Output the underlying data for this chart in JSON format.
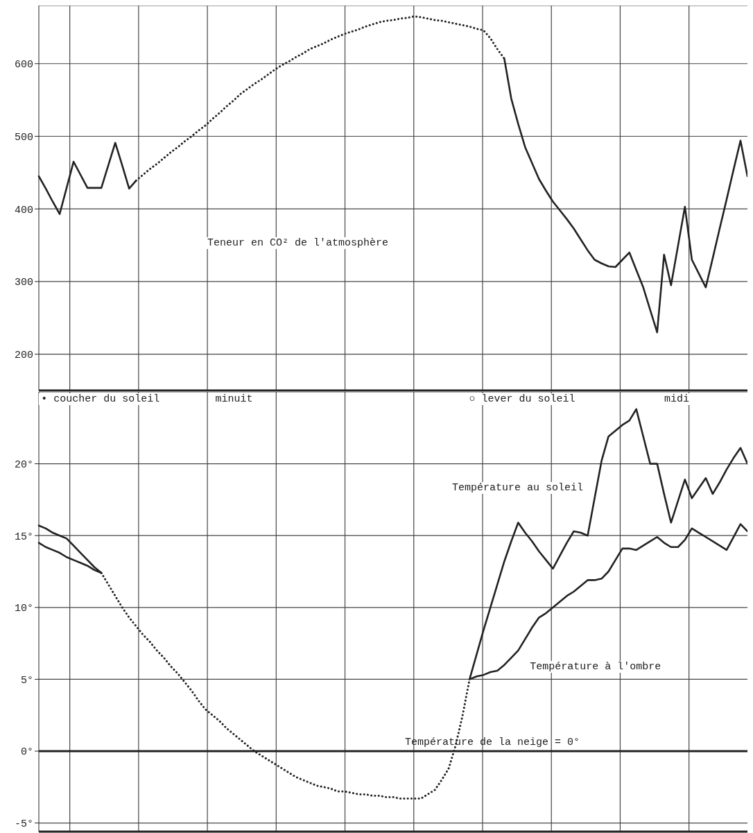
{
  "chart_data": [
    {
      "type": "line",
      "categories": [
        null,
        null,
        null,
        null,
        null,
        null,
        null,
        null,
        null,
        null,
        null,
        null,
        null,
        null,
        null,
        null,
        null,
        null,
        null,
        null,
        null,
        null,
        null,
        null,
        null,
        null,
        null,
        null,
        null,
        null,
        null,
        null,
        null,
        null,
        null,
        null,
        null,
        null,
        null,
        null,
        null,
        null,
        null,
        null,
        null,
        null,
        null,
        null,
        null,
        null,
        null,
        null,
        null,
        null,
        null,
        null,
        null,
        null,
        null,
        null,
        null,
        null,
        null,
        null,
        null,
        null,
        null,
        null,
        null,
        null,
        null,
        null,
        null,
        null,
        null,
        null,
        null,
        null,
        null,
        null,
        null,
        null,
        null,
        null,
        null,
        null,
        null,
        null,
        null,
        null,
        null,
        null,
        null,
        null,
        null,
        null,
        null,
        null,
        null,
        null,
        null,
        null,
        null
      ],
      "ylim": [
        150,
        680
      ],
      "yticks": [
        200,
        300,
        400,
        500,
        600
      ],
      "tick_labels": "y",
      "grid": true,
      "marker": "none",
      "series": [
        {
          "color": "#222222",
          "line_style": "solid",
          "values": [
            445,
            428,
            410,
            393,
            429,
            465,
            447,
            429,
            429,
            429,
            460,
            491,
            460,
            428,
            439,
            null,
            null,
            null,
            null,
            null,
            null,
            null,
            null,
            null,
            null,
            null,
            null,
            null,
            null,
            null,
            null,
            null,
            null,
            null,
            null,
            null,
            null,
            null,
            null,
            null,
            null,
            null,
            null,
            null,
            null,
            null,
            null,
            null,
            null,
            null,
            null,
            null,
            null,
            null,
            null,
            null,
            null,
            null,
            null,
            null,
            null,
            null,
            null,
            null,
            null,
            null,
            null,
            null,
            null,
            null,
            null,
            null,
            null,
            null,
            null,
            null,
            null,
            null,
            null,
            null,
            null,
            null,
            null,
            null,
            null,
            null,
            null,
            null,
            null,
            null,
            null,
            null,
            null,
            null,
            null,
            null,
            null,
            null,
            null,
            null,
            null,
            null,
            null
          ]
        },
        {
          "color": "#222222",
          "line_style": "dotted",
          "values": [
            null,
            null,
            null,
            null,
            null,
            null,
            null,
            null,
            null,
            null,
            null,
            null,
            null,
            null,
            439,
            447,
            455,
            462,
            470,
            478,
            485,
            493,
            500,
            508,
            515,
            524,
            532,
            541,
            549,
            558,
            565,
            572,
            578,
            585,
            592,
            598,
            603,
            609,
            614,
            620,
            624,
            628,
            633,
            637,
            641,
            644,
            647,
            651,
            654,
            657,
            659,
            660,
            662,
            663,
            665,
            664,
            662,
            660,
            659,
            657,
            655,
            653,
            651,
            648,
            646,
            635,
            620,
            607,
            null,
            null,
            null,
            null,
            null,
            null,
            null,
            null,
            null,
            null,
            null,
            null,
            null,
            null,
            null,
            null,
            null,
            null,
            null,
            null,
            null,
            null,
            null,
            null,
            null,
            null,
            null,
            null,
            null,
            null,
            null,
            null,
            null,
            null,
            null
          ]
        },
        {
          "name": "Teneur en CO² de l'atmosphère",
          "color": "#222222",
          "line_style": "solid",
          "values": [
            null,
            null,
            null,
            null,
            null,
            null,
            null,
            null,
            null,
            null,
            null,
            null,
            null,
            null,
            null,
            null,
            null,
            null,
            null,
            null,
            null,
            null,
            null,
            null,
            null,
            null,
            null,
            null,
            null,
            null,
            null,
            null,
            null,
            null,
            null,
            null,
            null,
            null,
            null,
            null,
            null,
            null,
            null,
            null,
            null,
            null,
            null,
            null,
            null,
            null,
            null,
            null,
            null,
            null,
            null,
            null,
            null,
            null,
            null,
            null,
            null,
            null,
            null,
            null,
            null,
            null,
            null,
            607,
            552,
            517,
            485,
            463,
            441,
            425,
            410,
            398,
            386,
            373,
            358,
            343,
            330,
            325,
            321,
            320,
            330,
            340,
            316,
            292,
            261,
            230,
            337,
            295,
            349,
            403,
            330,
            311,
            292,
            332,
            373,
            413,
            454,
            494,
            445
          ]
        }
      ]
    },
    {
      "type": "line",
      "categories": [
        null,
        null,
        null,
        null,
        null,
        null,
        null,
        null,
        null,
        null,
        null,
        null,
        null,
        null,
        null,
        null,
        null,
        null,
        null,
        null,
        null,
        null,
        null,
        null,
        null,
        null,
        null,
        null,
        null,
        null,
        null,
        null,
        null,
        null,
        null,
        null,
        null,
        null,
        null,
        null,
        null,
        null,
        null,
        null,
        null,
        null,
        null,
        null,
        null,
        null,
        null,
        null,
        null,
        null,
        null,
        null,
        null,
        null,
        null,
        null,
        null,
        null,
        null,
        null,
        null,
        null,
        null,
        null,
        null,
        null,
        null,
        null,
        null,
        null,
        null,
        null,
        null,
        null,
        null,
        null,
        null,
        null,
        null,
        null,
        null,
        null,
        null,
        null,
        null,
        null,
        null,
        null,
        null,
        null,
        null,
        null,
        null,
        null,
        null,
        null,
        null,
        null,
        null
      ],
      "ylim": [
        -5.6,
        25
      ],
      "yticks": [
        {
          "value": -5,
          "label": "-5°"
        },
        {
          "value": 0,
          "label": "0°"
        },
        {
          "value": 5,
          "label": "5°"
        },
        {
          "value": 10,
          "label": "10°"
        },
        {
          "value": 15,
          "label": "15°"
        },
        {
          "value": 20,
          "label": "20°"
        }
      ],
      "tick_labels": "y",
      "grid": true,
      "marker": "none",
      "ref_lines": [
        {
          "axis": "y",
          "value": 0,
          "label": "Température de la neige = 0°",
          "color": "#222222"
        }
      ],
      "annotations": [
        "• coucher du soleil",
        "minuit",
        "○ lever du soleil",
        "midi"
      ],
      "series": [
        {
          "color": "#222222",
          "line_style": "solid",
          "values": [
            15.7,
            15.5,
            15.2,
            15.0,
            14.8,
            14.3,
            13.8,
            13.3,
            12.8,
            12.4,
            null,
            null,
            null,
            null,
            null,
            null,
            null,
            null,
            null,
            null,
            null,
            null,
            null,
            null,
            null,
            null,
            null,
            null,
            null,
            null,
            null,
            null,
            null,
            null,
            null,
            null,
            null,
            null,
            null,
            null,
            null,
            null,
            null,
            null,
            null,
            null,
            null,
            null,
            null,
            null,
            null,
            null,
            null,
            null,
            null,
            null,
            null,
            null,
            null,
            null,
            null,
            null,
            null,
            null,
            null,
            null,
            null,
            null,
            null,
            null,
            null,
            null,
            null,
            null,
            null,
            null,
            null,
            null,
            null,
            null,
            null,
            null,
            null,
            null,
            null,
            null,
            null,
            null,
            null,
            null,
            null,
            null,
            null,
            null,
            null,
            null,
            null,
            null,
            null,
            null,
            null,
            null,
            null
          ]
        },
        {
          "color": "#222222",
          "line_style": "solid",
          "values": [
            14.5,
            14.2,
            14.0,
            13.8,
            13.5,
            13.3,
            13.1,
            12.9,
            12.6,
            12.4,
            null,
            null,
            null,
            null,
            null,
            null,
            null,
            null,
            null,
            null,
            null,
            null,
            null,
            null,
            null,
            null,
            null,
            null,
            null,
            null,
            null,
            null,
            null,
            null,
            null,
            null,
            null,
            null,
            null,
            null,
            null,
            null,
            null,
            null,
            null,
            null,
            null,
            null,
            null,
            null,
            null,
            null,
            null,
            null,
            null,
            null,
            null,
            null,
            null,
            null,
            null,
            null,
            null,
            null,
            null,
            null,
            null,
            null,
            null,
            null,
            null,
            null,
            null,
            null,
            null,
            null,
            null,
            null,
            null,
            null,
            null,
            null,
            null,
            null,
            null,
            null,
            null,
            null,
            null,
            null,
            null,
            null,
            null,
            null,
            null,
            null,
            null,
            null,
            null,
            null,
            null,
            null,
            null
          ]
        },
        {
          "color": "#222222",
          "line_style": "dotted",
          "values": [
            null,
            null,
            null,
            null,
            null,
            null,
            null,
            null,
            null,
            12.4,
            11.6,
            10.8,
            10.0,
            9.3,
            8.7,
            8.1,
            7.6,
            7.0,
            6.5,
            5.9,
            5.4,
            4.8,
            4.2,
            3.5,
            2.9,
            2.5,
            2.1,
            1.6,
            1.2,
            0.8,
            0.4,
            0.0,
            -0.3,
            -0.6,
            -0.9,
            -1.2,
            -1.5,
            -1.8,
            -2.0,
            -2.2,
            -2.4,
            -2.5,
            -2.6,
            -2.8,
            -2.8,
            -2.9,
            -3.0,
            -3.0,
            -3.1,
            -3.1,
            -3.2,
            -3.2,
            -3.3,
            -3.3,
            -3.3,
            -3.3,
            -3.0,
            -2.7,
            -2.0,
            -1.2,
            0.4,
            2.5,
            5.0,
            null,
            null,
            null,
            null,
            null,
            null,
            null,
            null,
            null,
            null,
            null,
            null,
            null,
            null,
            null,
            null,
            null,
            null,
            null,
            null,
            null,
            null,
            null,
            null,
            null,
            null,
            null,
            null,
            null,
            null,
            null,
            null,
            null,
            null,
            null,
            null,
            null,
            null,
            null,
            null
          ]
        },
        {
          "name": "Température au soleil",
          "color": "#222222",
          "line_style": "solid",
          "values": [
            null,
            null,
            null,
            null,
            null,
            null,
            null,
            null,
            null,
            null,
            null,
            null,
            null,
            null,
            null,
            null,
            null,
            null,
            null,
            null,
            null,
            null,
            null,
            null,
            null,
            null,
            null,
            null,
            null,
            null,
            null,
            null,
            null,
            null,
            null,
            null,
            null,
            null,
            null,
            null,
            null,
            null,
            null,
            null,
            null,
            null,
            null,
            null,
            null,
            null,
            null,
            null,
            null,
            null,
            null,
            null,
            null,
            null,
            null,
            null,
            null,
            null,
            5.0,
            6.7,
            8.4,
            10.0,
            11.6,
            13.2,
            14.6,
            15.9,
            15.2,
            14.6,
            13.9,
            13.3,
            12.7,
            13.6,
            14.5,
            15.3,
            15.2,
            15.0,
            17.6,
            20.2,
            21.9,
            22.3,
            22.7,
            23.0,
            23.8,
            21.9,
            20.0,
            20.0,
            17.9,
            15.9,
            17.4,
            18.9,
            17.6,
            18.3,
            19.0,
            17.9,
            18.7,
            19.6,
            20.4,
            21.1,
            20.0
          ]
        },
        {
          "name": "Température à l'ombre",
          "color": "#222222",
          "line_style": "solid",
          "values": [
            null,
            null,
            null,
            null,
            null,
            null,
            null,
            null,
            null,
            null,
            null,
            null,
            null,
            null,
            null,
            null,
            null,
            null,
            null,
            null,
            null,
            null,
            null,
            null,
            null,
            null,
            null,
            null,
            null,
            null,
            null,
            null,
            null,
            null,
            null,
            null,
            null,
            null,
            null,
            null,
            null,
            null,
            null,
            null,
            null,
            null,
            null,
            null,
            null,
            null,
            null,
            null,
            null,
            null,
            null,
            null,
            null,
            null,
            null,
            null,
            null,
            null,
            5.0,
            5.2,
            5.3,
            5.5,
            5.6,
            6.0,
            6.5,
            7.0,
            7.8,
            8.6,
            9.3,
            9.6,
            10.0,
            10.4,
            10.8,
            11.1,
            11.5,
            11.9,
            11.9,
            12.0,
            12.5,
            13.3,
            14.1,
            14.1,
            14.0,
            14.3,
            14.6,
            14.9,
            14.5,
            14.2,
            14.2,
            14.7,
            15.5,
            15.2,
            14.9,
            14.6,
            14.3,
            14.0,
            14.9,
            15.8,
            15.3
          ]
        }
      ]
    }
  ]
}
